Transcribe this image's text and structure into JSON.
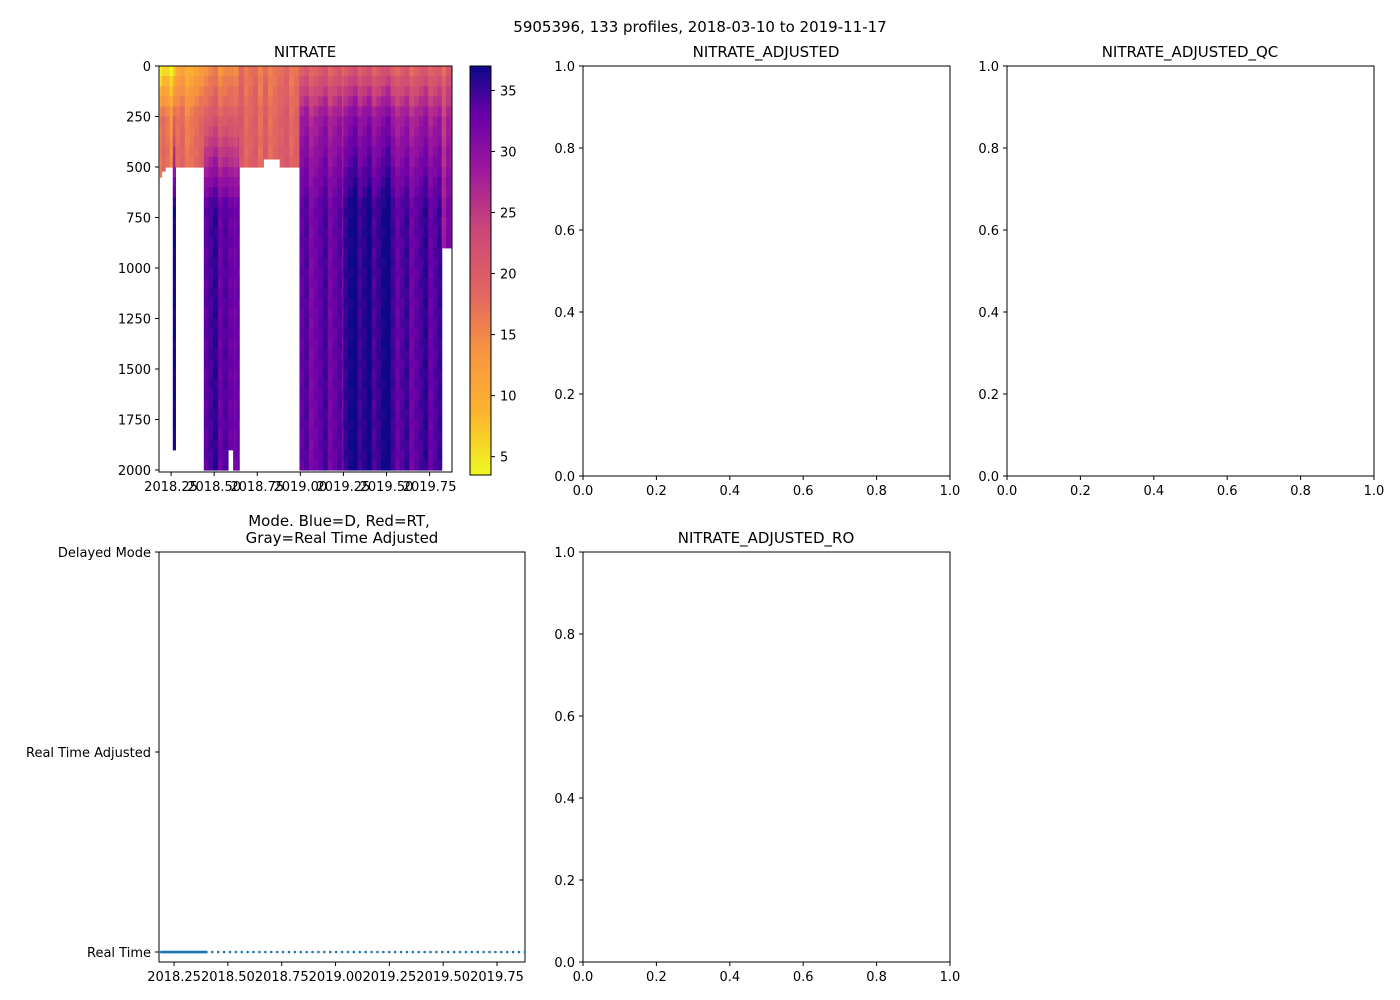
{
  "figure": {
    "suptitle": "5905396, 133 profiles, 2018-03-10 to 2019-11-17"
  },
  "chart_data": [
    {
      "id": "nitrate",
      "type": "heatmap",
      "title": "NITRATE",
      "x": {
        "range": [
          2018.18,
          2019.88
        ],
        "ticks": [
          2018.25,
          2018.5,
          2018.75,
          2019.0,
          2019.25,
          2019.5,
          2019.75
        ],
        "tick_labels": [
          "2018.25",
          "2018.50",
          "2018.75",
          "2019.00",
          "2019.25",
          "2019.50",
          "2019.75"
        ]
      },
      "y": {
        "range": [
          2010,
          0
        ],
        "ticks": [
          0,
          250,
          500,
          750,
          1000,
          1250,
          1500,
          1750,
          2000
        ],
        "tick_labels": [
          "0",
          "250",
          "500",
          "750",
          "1000",
          "1250",
          "1500",
          "1750",
          "2000"
        ]
      },
      "colorbar": {
        "min": 3.5,
        "max": 37,
        "cmap": "plasma_r",
        "ticks": [
          5,
          10,
          15,
          20,
          25,
          30,
          35
        ],
        "tick_labels": [
          "5",
          "10",
          "15",
          "20",
          "25",
          "30",
          "35"
        ]
      },
      "profile_spacing_years": 0.0274,
      "segments": [
        {
          "t0": 2018.185,
          "t1": 2018.195,
          "bottom": 550,
          "surface": 2,
          "mid": 18,
          "deep": 18
        },
        {
          "t0": 2018.195,
          "t1": 2018.215,
          "bottom": 520,
          "surface": 3,
          "mid": 16,
          "deep": 18
        },
        {
          "t0": 2018.215,
          "t1": 2018.26,
          "bottom": 500,
          "surface": 4,
          "mid": 15,
          "deep": 18
        },
        {
          "t0": 2018.26,
          "t1": 2018.275,
          "bottom": 1900,
          "surface": 5,
          "mid": 18,
          "deep": 36
        },
        {
          "t0": 2018.275,
          "t1": 2018.44,
          "bottom": 500,
          "surface": 10,
          "mid": 17,
          "deep": 19
        },
        {
          "t0": 2018.44,
          "t1": 2018.58,
          "bottom": 2000,
          "surface": 14,
          "mid": 20,
          "deep": 34
        },
        {
          "t0": 2018.58,
          "t1": 2018.61,
          "bottom": 1900,
          "surface": 16,
          "mid": 21,
          "deep": 34
        },
        {
          "t0": 2018.61,
          "t1": 2018.645,
          "bottom": 2000,
          "surface": 16,
          "mid": 21,
          "deep": 34
        },
        {
          "t0": 2018.645,
          "t1": 2018.785,
          "bottom": 500,
          "surface": 17,
          "mid": 19,
          "deep": 20
        },
        {
          "t0": 2018.785,
          "t1": 2018.88,
          "bottom": 460,
          "surface": 17,
          "mid": 19,
          "deep": 20
        },
        {
          "t0": 2018.88,
          "t1": 2018.995,
          "bottom": 500,
          "surface": 17,
          "mid": 19,
          "deep": 20
        },
        {
          "t0": 2018.995,
          "t1": 2019.25,
          "bottom": 2000,
          "surface": 19,
          "mid": 28,
          "deep": 33
        },
        {
          "t0": 2019.25,
          "t1": 2019.55,
          "bottom": 2000,
          "surface": 20,
          "mid": 30,
          "deep": 36
        },
        {
          "t0": 2019.55,
          "t1": 2019.82,
          "bottom": 2000,
          "surface": 19,
          "mid": 28,
          "deep": 34
        },
        {
          "t0": 2019.82,
          "t1": 2019.845,
          "bottom": 900,
          "surface": 19,
          "mid": 26,
          "deep": 30
        },
        {
          "t0": 2019.845,
          "t1": 2019.875,
          "bottom": 900,
          "surface": 19,
          "mid": 26,
          "deep": 30
        }
      ]
    },
    {
      "id": "nitrate_adjusted",
      "type": "heatmap",
      "title": "NITRATE_ADJUSTED",
      "x": {
        "range": [
          0,
          1
        ],
        "ticks": [
          0,
          0.2,
          0.4,
          0.6,
          0.8,
          1.0
        ],
        "tick_labels": [
          "0.0",
          "0.2",
          "0.4",
          "0.6",
          "0.8",
          "1.0"
        ]
      },
      "y": {
        "range": [
          0,
          1
        ],
        "ticks": [
          0,
          0.2,
          0.4,
          0.6,
          0.8,
          1.0
        ],
        "tick_labels": [
          "0.0",
          "0.2",
          "0.4",
          "0.6",
          "0.8",
          "1.0"
        ]
      }
    },
    {
      "id": "nitrate_adjusted_qc",
      "type": "heatmap",
      "title": "NITRATE_ADJUSTED_QC",
      "x": {
        "range": [
          0,
          1
        ],
        "ticks": [
          0,
          0.2,
          0.4,
          0.6,
          0.8,
          1.0
        ],
        "tick_labels": [
          "0.0",
          "0.2",
          "0.4",
          "0.6",
          "0.8",
          "1.0"
        ]
      },
      "y": {
        "range": [
          0,
          1
        ],
        "ticks": [
          0,
          0.2,
          0.4,
          0.6,
          0.8,
          1.0
        ],
        "tick_labels": [
          "0.0",
          "0.2",
          "0.4",
          "0.6",
          "0.8",
          "1.0"
        ]
      }
    },
    {
      "id": "mode",
      "type": "scatter",
      "title": "Mode. Blue=D, Red=RT,\nGray=Real Time Adjusted",
      "title_lines": [
        "Mode. Blue=D, Red=RT,",
        "Gray=Real Time Adjusted"
      ],
      "x": {
        "range": [
          2018.18,
          2019.88
        ],
        "ticks": [
          2018.25,
          2018.5,
          2018.75,
          2019.0,
          2019.25,
          2019.5,
          2019.75
        ],
        "tick_labels": [
          "2018.25",
          "2018.50",
          "2018.75",
          "2019.00",
          "2019.25",
          "2019.50",
          "2019.75"
        ]
      },
      "y": {
        "range": [
          -0.05,
          2.0
        ],
        "ticks": [
          0,
          1,
          2
        ],
        "tick_labels": [
          "Real Time",
          "Real Time Adjusted",
          "Delayed Mode"
        ]
      },
      "series": [
        {
          "name": "Real Time",
          "color": "#1f77b4",
          "dense_interval": [
            2018.19,
            2018.4
          ],
          "dense_step": 0.003,
          "sparse_interval": [
            2018.4,
            2019.88
          ],
          "sparse_step": 0.0274,
          "y": 0
        }
      ]
    },
    {
      "id": "nitrate_adjusted_ro",
      "type": "heatmap",
      "title": "NITRATE_ADJUSTED_RO",
      "x": {
        "range": [
          0,
          1
        ],
        "ticks": [
          0,
          0.2,
          0.4,
          0.6,
          0.8,
          1.0
        ],
        "tick_labels": [
          "0.0",
          "0.2",
          "0.4",
          "0.6",
          "0.8",
          "1.0"
        ]
      },
      "y": {
        "range": [
          0,
          1
        ],
        "ticks": [
          0,
          0.2,
          0.4,
          0.6,
          0.8,
          1.0
        ],
        "tick_labels": [
          "0.0",
          "0.2",
          "0.4",
          "0.6",
          "0.8",
          "1.0"
        ]
      }
    }
  ]
}
